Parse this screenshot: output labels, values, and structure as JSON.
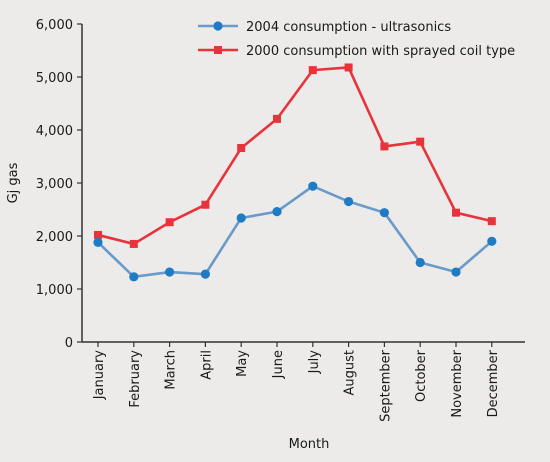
{
  "chart_data": {
    "type": "line",
    "categories": [
      "January",
      "February",
      "March",
      "April",
      "May",
      "June",
      "July",
      "August",
      "September",
      "October",
      "November",
      "December"
    ],
    "series": [
      {
        "name": "2004 consumption - ultrasonics",
        "color": "#6a9ac9",
        "marker_color": "#1f7bc4",
        "marker": "circle",
        "values": [
          1880,
          1230,
          1320,
          1280,
          2340,
          2460,
          2940,
          2650,
          2440,
          1500,
          1320,
          1900
        ]
      },
      {
        "name": "2000 consumption with sprayed coil type",
        "color": "#e8333a",
        "marker_color": "#e8333a",
        "marker": "square",
        "values": [
          2020,
          1850,
          2260,
          2590,
          3660,
          4210,
          5130,
          5180,
          3690,
          3780,
          2440,
          2280
        ]
      }
    ],
    "yticks": [
      {
        "value": 0,
        "label": "0"
      },
      {
        "value": 1000,
        "label": "1,000"
      },
      {
        "value": 2000,
        "label": "2,000"
      },
      {
        "value": 3000,
        "label": "3,000"
      },
      {
        "value": 4000,
        "label": "4,000"
      },
      {
        "value": 5000,
        "label": "5,000"
      },
      {
        "value": 6000,
        "label": "6,000"
      }
    ],
    "ylim": [
      0,
      6000
    ],
    "xlabel": "Month",
    "ylabel": "Gj gas",
    "grid": false,
    "legend_position": "top-right",
    "axis_color": "#333333",
    "background": "#ecebe9"
  }
}
